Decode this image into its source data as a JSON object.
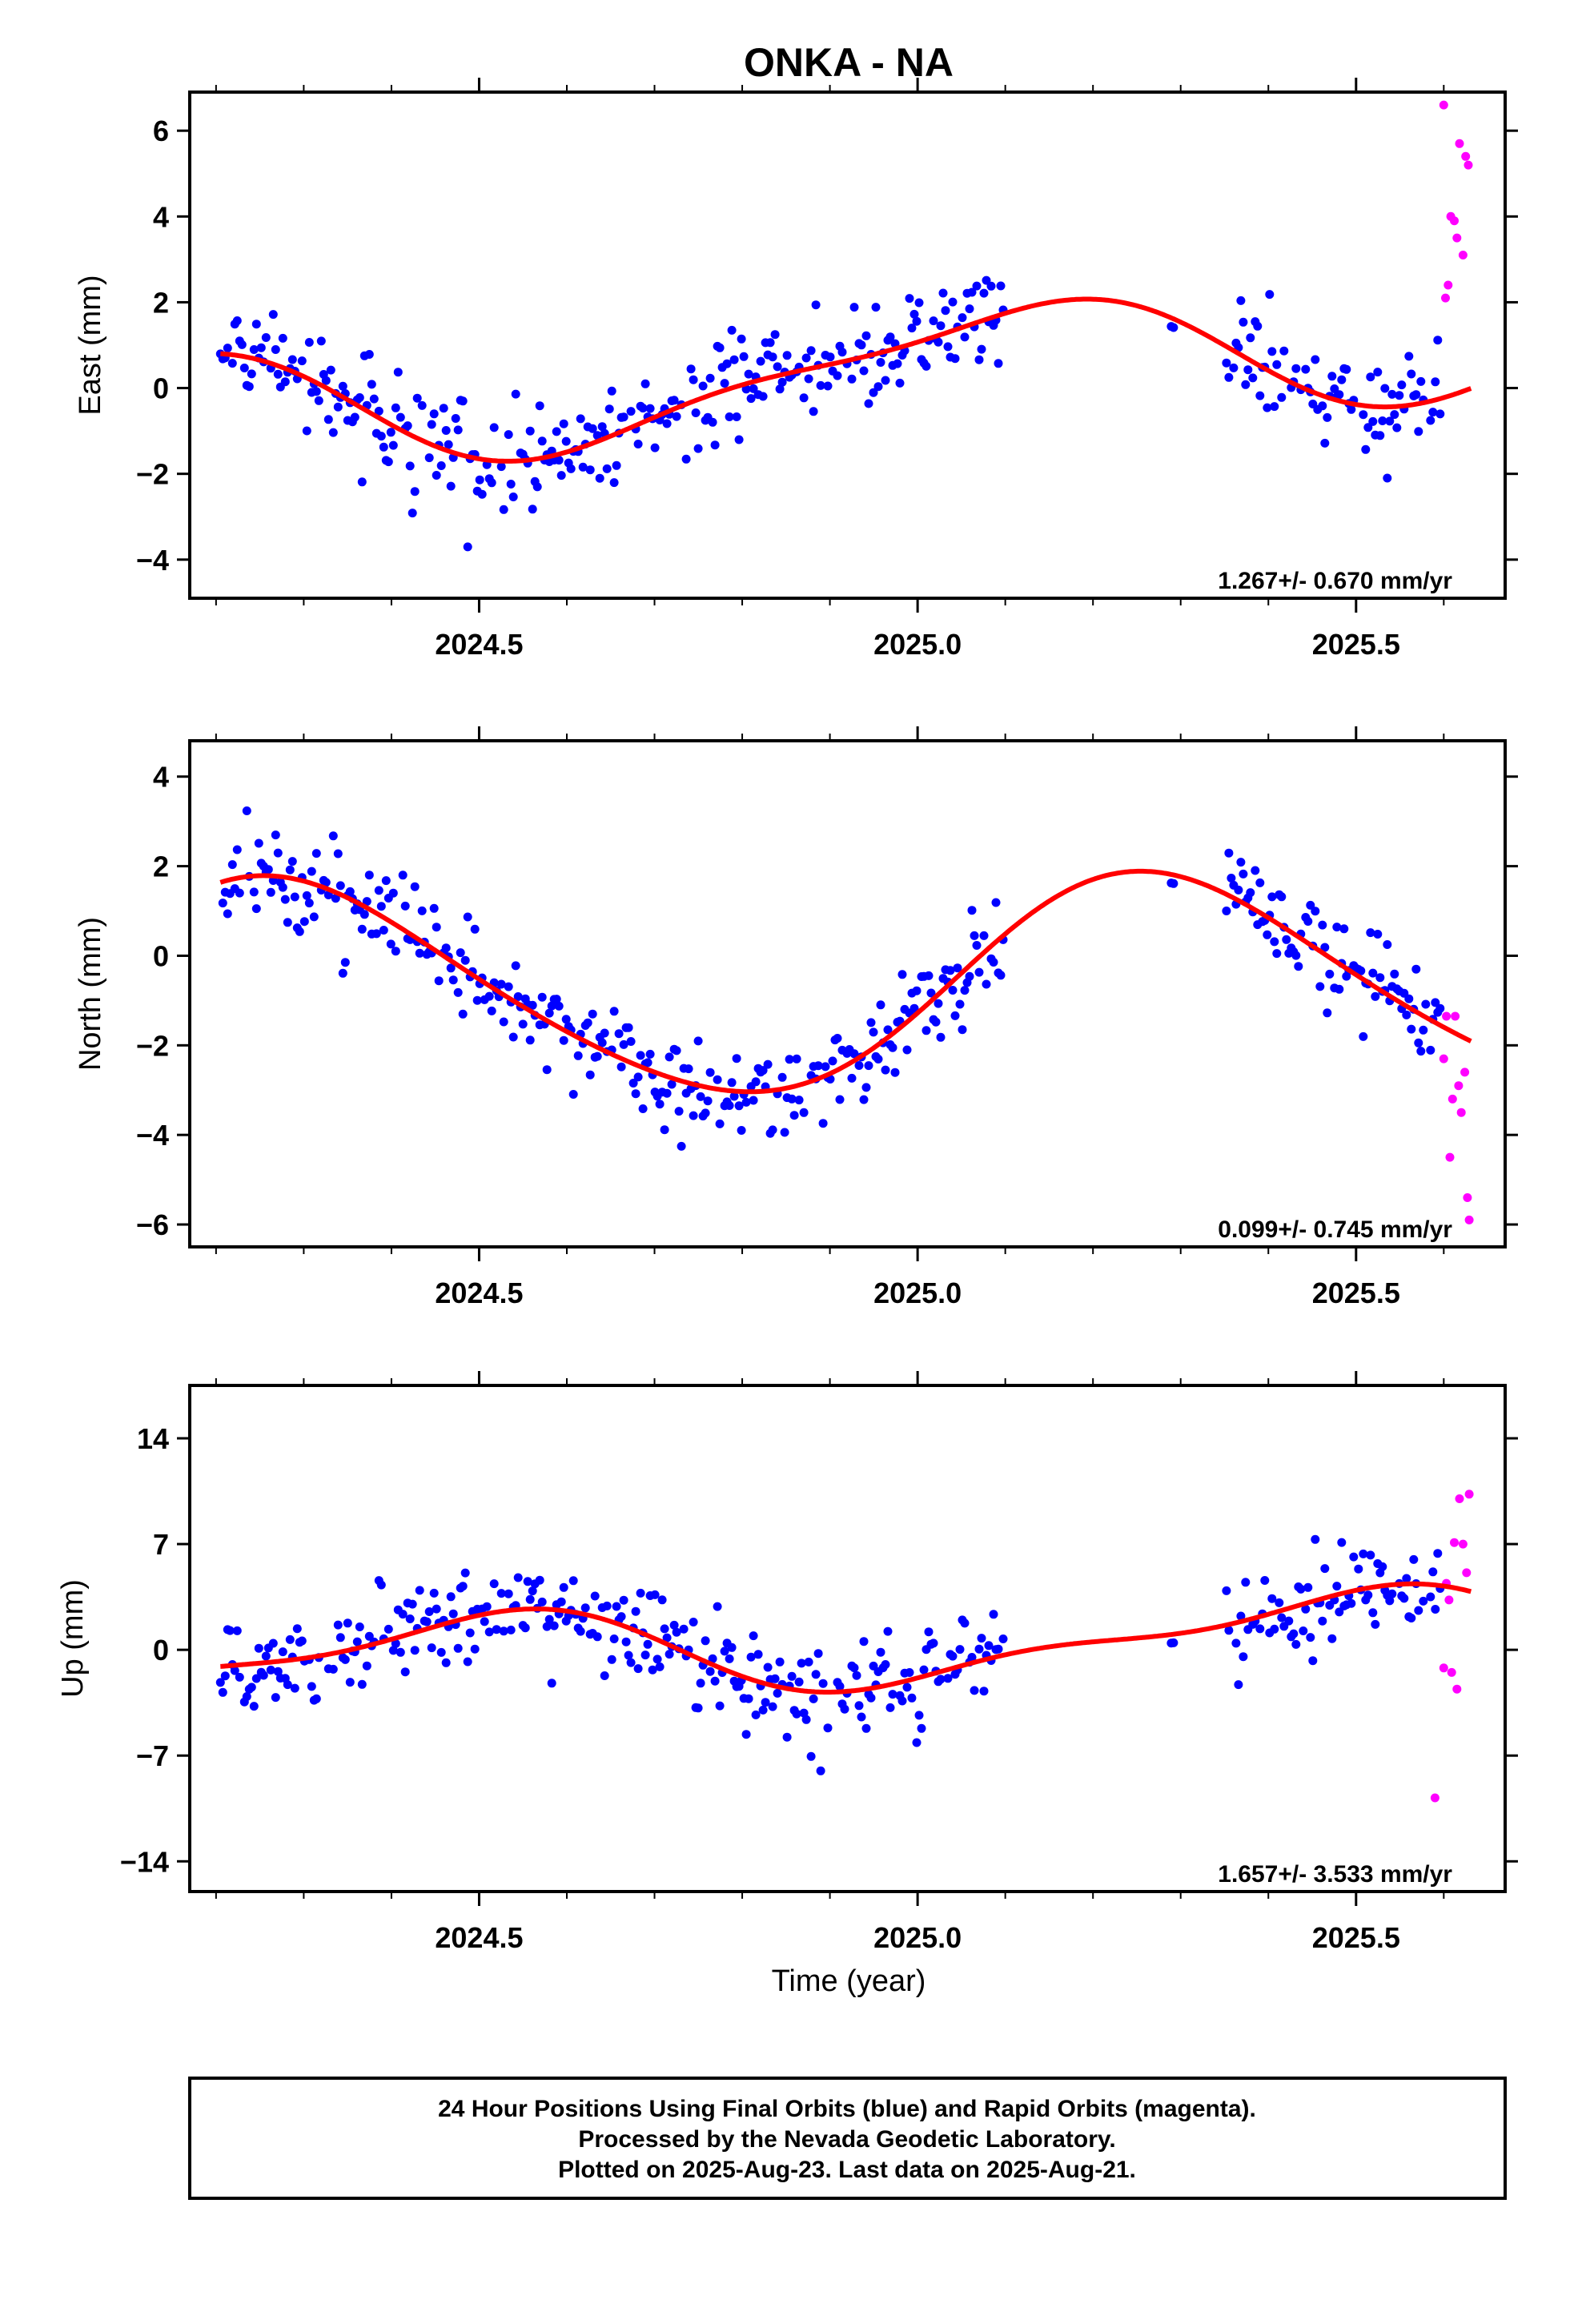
{
  "title": "ONKA - NA",
  "xlabel": "Time (year)",
  "colors": {
    "final": "#0000ff",
    "rapid": "#ff00ff",
    "model": "#ff0000"
  },
  "note_lines": [
    "24 Hour Positions Using Final Orbits (blue) and Rapid Orbits (magenta).",
    "Processed by the Nevada Geodetic Laboratory.",
    "Plotted on 2025-Aug-23. Last data on 2025-Aug-21."
  ],
  "chart_data": [
    {
      "type": "scatter",
      "ylabel": "East (mm)",
      "rate_text": "1.267+/- 0.670 mm/yr",
      "xlim": [
        2024.17,
        2025.67
      ],
      "ylim": [
        -4.9,
        6.9
      ],
      "xticks": [
        2024.5,
        2025.0,
        2025.5
      ],
      "xtick_labels": [
        "2024.5",
        "2025.0",
        "2025.5"
      ],
      "yticks": [
        -4,
        -2,
        0,
        2,
        4,
        6
      ],
      "ytick_labels": [
        "−4",
        "−2",
        "0",
        "2",
        "4",
        "6"
      ],
      "grid": false,
      "final_gap": [
        2025.1,
        2025.35
      ],
      "rapid": {
        "x": [
          2025.6,
          2025.602,
          2025.605,
          2025.608,
          2025.612,
          2025.615,
          2025.618,
          2025.622,
          2025.625,
          2025.628
        ],
        "y": [
          6.6,
          2.1,
          2.4,
          4.0,
          3.9,
          3.5,
          5.7,
          3.1,
          5.4,
          5.2
        ]
      },
      "seasonal": {
        "a": 0.3,
        "b": 1.267,
        "t0": 2024.9,
        "amp1": 1.3,
        "ph1": 2.0,
        "amp2": 0.4,
        "ph2": 0.6
      }
    },
    {
      "type": "scatter",
      "ylabel": "North (mm)",
      "rate_text": "0.099+/- 0.745 mm/yr",
      "xlim": [
        2024.17,
        2025.67
      ],
      "ylim": [
        -6.5,
        4.8
      ],
      "xticks": [
        2024.5,
        2025.0,
        2025.5
      ],
      "xtick_labels": [
        "2024.5",
        "2025.0",
        "2025.5"
      ],
      "yticks": [
        -6,
        -4,
        -2,
        0,
        2,
        4
      ],
      "ytick_labels": [
        "−6",
        "−4",
        "−2",
        "0",
        "2",
        "4"
      ],
      "grid": false,
      "final_gap": [
        2025.1,
        2025.35
      ],
      "rapid": {
        "x": [
          2025.6,
          2025.603,
          2025.607,
          2025.61,
          2025.613,
          2025.617,
          2025.62,
          2025.624,
          2025.627,
          2025.629
        ],
        "y": [
          -2.3,
          -1.35,
          -4.5,
          -3.2,
          -1.35,
          -2.9,
          -3.5,
          -2.6,
          -5.4,
          -5.9
        ]
      },
      "seasonal": {
        "a": -0.7,
        "b": 0.099,
        "t0": 2024.9,
        "amp1": 2.4,
        "ph1": 0.9,
        "amp2": 0.25,
        "ph2": 1.3
      }
    },
    {
      "type": "scatter",
      "ylabel": "Up (mm)",
      "rate_text": "1.657+/- 3.533 mm/yr",
      "xlim": [
        2024.17,
        2025.67
      ],
      "ylim": [
        -16,
        17.5
      ],
      "xticks": [
        2024.5,
        2025.0,
        2025.5
      ],
      "xtick_labels": [
        "2024.5",
        "2025.0",
        "2025.5"
      ],
      "yticks": [
        -14,
        -7,
        0,
        7,
        14
      ],
      "ytick_labels": [
        "−14",
        "−7",
        "0",
        "7",
        "14"
      ],
      "grid": false,
      "final_gap": [
        2025.1,
        2025.35
      ],
      "rapid": {
        "x": [
          2025.59,
          2025.6,
          2025.603,
          2025.606,
          2025.609,
          2025.612,
          2025.615,
          2025.618,
          2025.622,
          2025.626,
          2025.629
        ],
        "y": [
          -9.8,
          -1.2,
          4.4,
          3.3,
          -1.5,
          7.1,
          -2.6,
          10.0,
          7.0,
          5.1,
          10.3
        ]
      },
      "seasonal": {
        "a": 0.2,
        "b": 1.657,
        "t0": 2024.9,
        "amp1": 2.5,
        "ph1": -0.4,
        "amp2": 1.0,
        "ph2": 2.4
      }
    }
  ]
}
